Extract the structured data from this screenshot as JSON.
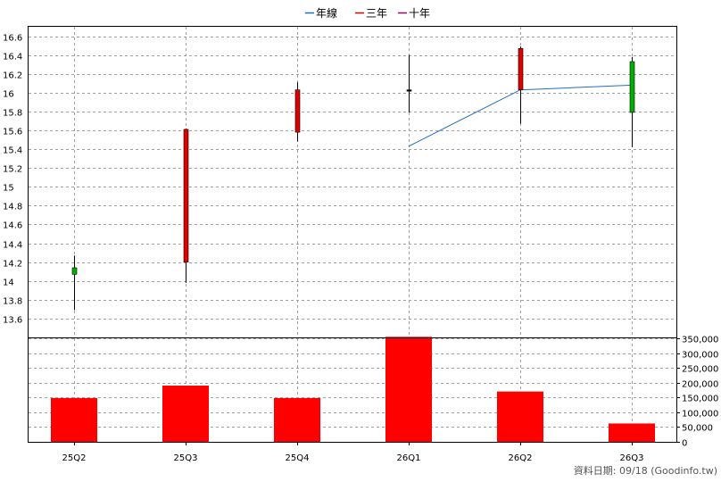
{
  "chart_data": {
    "type": "candlestick+bar",
    "legend": {
      "placement": "top-center",
      "items": [
        {
          "label": "年線",
          "color": "#1f6fc0"
        },
        {
          "label": "三年",
          "color": "#e00000"
        },
        {
          "label": "十年",
          "color": "#a0006e"
        }
      ]
    },
    "categories": [
      "25Q2",
      "25Q3",
      "25Q4",
      "26Q1",
      "26Q2",
      "26Q3"
    ],
    "price": {
      "ylim": [
        13.4,
        16.7
      ],
      "ticks": [
        13.6,
        13.8,
        14,
        14.2,
        14.4,
        14.6,
        14.8,
        15,
        15.2,
        15.4,
        15.6,
        15.8,
        16,
        16.2,
        16.4,
        16.6
      ],
      "tick_labels": [
        "13.6",
        "13.8",
        "14",
        "14.2",
        "14.4",
        "14.6",
        "14.8",
        "15",
        "15.2",
        "15.4",
        "15.6",
        "15.8",
        "16",
        "16.2",
        "16.4",
        "16.6"
      ],
      "candles": [
        {
          "open": 14.07,
          "high": 14.27,
          "low": 13.69,
          "close": 14.14,
          "color": "#00b000"
        },
        {
          "open": 14.2,
          "high": 15.62,
          "low": 13.98,
          "close": 15.61,
          "color": "#e00000"
        },
        {
          "open": 15.58,
          "high": 16.11,
          "low": 15.48,
          "close": 16.03,
          "color": "#e00000"
        },
        {
          "open": 16.02,
          "high": 16.4,
          "low": 15.79,
          "close": 16.03,
          "color": "#000000"
        },
        {
          "open": 16.03,
          "high": 16.49,
          "low": 15.67,
          "close": 16.47,
          "color": "#e00000"
        },
        {
          "open": 16.33,
          "high": 16.38,
          "low": 15.42,
          "close": 15.79,
          "color": "#00b000"
        }
      ],
      "annual_line": [
        null,
        null,
        null,
        15.43,
        16.03,
        16.08
      ],
      "annual_line_color": "#1f6fc0"
    },
    "volume": {
      "ylim": [
        0,
        350000
      ],
      "ticks": [
        0,
        50000,
        100000,
        150000,
        200000,
        250000,
        300000,
        350000
      ],
      "tick_labels": [
        "0",
        "50,000",
        "100,000",
        "150,000",
        "200,000",
        "250,000",
        "300,000",
        "350,000"
      ],
      "values": [
        148000,
        190000,
        148000,
        355000,
        170000,
        62000
      ],
      "color": "#ff0000"
    },
    "grid": true
  },
  "footer": {
    "source": "資料日期: 09/18  (Goodinfo.tw)"
  }
}
